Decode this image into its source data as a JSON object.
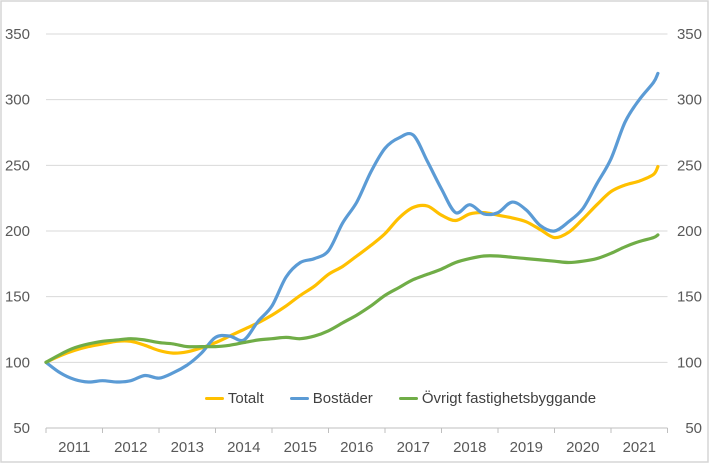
{
  "chart_data": {
    "type": "line",
    "title": "",
    "x": [
      2011,
      2011.25,
      2011.5,
      2011.75,
      2012,
      2012.25,
      2012.5,
      2012.75,
      2013,
      2013.25,
      2013.5,
      2013.75,
      2014,
      2014.25,
      2014.5,
      2014.75,
      2015,
      2015.25,
      2015.5,
      2015.75,
      2016,
      2016.25,
      2016.5,
      2016.75,
      2017,
      2017.25,
      2017.5,
      2017.75,
      2018,
      2018.25,
      2018.5,
      2018.75,
      2019,
      2019.25,
      2019.5,
      2019.75,
      2020,
      2020.25,
      2020.5,
      2020.75,
      2021,
      2021.25,
      2021.5,
      2021.75,
      2021.83
    ],
    "series": [
      {
        "name": "Totalt",
        "color": "#FFC000",
        "values": [
          100,
          105,
          109,
          112,
          114,
          116,
          116,
          113,
          109,
          107,
          108,
          111,
          115,
          120,
          125,
          130,
          136,
          143,
          151,
          158,
          167,
          173,
          181,
          189,
          198,
          210,
          218,
          219,
          212,
          208,
          213,
          214,
          212,
          210,
          207,
          201,
          195,
          199,
          209,
          220,
          230,
          235,
          238,
          243,
          249
        ]
      },
      {
        "name": "Bostäder",
        "color": "#5B9BD5",
        "values": [
          100,
          92,
          87,
          85,
          86,
          85,
          86,
          90,
          88,
          92,
          98,
          107,
          119,
          120,
          117,
          131,
          143,
          165,
          176,
          179,
          185,
          206,
          222,
          245,
          263,
          271,
          273,
          253,
          232,
          214,
          220,
          213,
          214,
          222,
          216,
          204,
          200,
          207,
          217,
          236,
          255,
          283,
          300,
          313,
          320
        ]
      },
      {
        "name": "Övrigt fastighetsbyggande",
        "color": "#70AD47",
        "values": [
          100,
          106,
          111,
          114,
          116,
          117,
          118,
          117,
          115,
          114,
          112,
          112,
          112,
          113,
          115,
          117,
          118,
          119,
          118,
          120,
          124,
          130,
          136,
          143,
          151,
          157,
          163,
          167,
          171,
          176,
          179,
          181,
          181,
          180,
          179,
          178,
          177,
          176,
          177,
          179,
          183,
          188,
          192,
          195,
          197
        ]
      }
    ],
    "ylim": [
      50,
      350
    ],
    "y_ticks": [
      350,
      300,
      250,
      200,
      150,
      100,
      50
    ],
    "y_axis_sides": "both",
    "x_tick_labels": [
      "2011",
      "2012",
      "2013",
      "2014",
      "2015",
      "2016",
      "2017",
      "2018",
      "2019",
      "2020",
      "2021"
    ],
    "grid": "horizontal",
    "legend_position": "bottom"
  },
  "style": {
    "background": "#FFFFFF",
    "border_color": "#D6D6D6",
    "grid_color": "#D9D9D9",
    "axis_color": "#BFBFBF",
    "tick_label_color": "#595959",
    "legend_text_color": "#404040"
  }
}
